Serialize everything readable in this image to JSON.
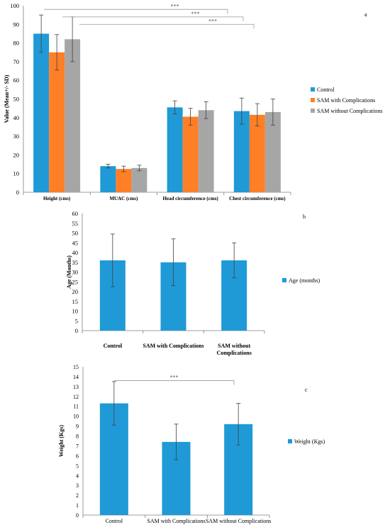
{
  "colors": {
    "control": "#1f9ad6",
    "sam_with": "#ff7f27",
    "sam_without": "#a6a6a6",
    "axis": "#7f7f7f",
    "text": "#000000",
    "sig_line": "#a6a6a6"
  },
  "chart_data": [
    {
      "panel_label": "a",
      "type": "bar",
      "ylabel": "Value (Mean+/- SD)",
      "xlabel": "",
      "ylim": [
        0,
        100
      ],
      "yticks": [
        0,
        10,
        20,
        30,
        40,
        50,
        60,
        70,
        80,
        90,
        100
      ],
      "categories": [
        "Height (cms)",
        "MUAC (cms)",
        "Head circumference (cms)",
        "Chest circumference (cms)"
      ],
      "series": [
        {
          "name": "Control",
          "color_key": "control",
          "values": [
            85,
            14,
            45.5,
            43.5
          ],
          "errors": [
            10,
            1,
            3.5,
            7
          ]
        },
        {
          "name": "SAM with Complications",
          "color_key": "sam_with",
          "values": [
            75,
            12.5,
            40.5,
            41.5
          ],
          "errors": [
            9.5,
            1.5,
            4.5,
            6
          ]
        },
        {
          "name": "SAM without Complications",
          "color_key": "sam_without",
          "values": [
            82,
            13,
            44,
            43
          ],
          "errors": [
            12,
            1.5,
            4.5,
            7
          ]
        }
      ],
      "legend_position": "right",
      "significance": [
        {
          "label": "***",
          "y": 98
        },
        {
          "label": "***",
          "y": 94
        },
        {
          "label": "***",
          "y": 90
        }
      ]
    },
    {
      "panel_label": "b",
      "type": "bar",
      "ylabel": "Age (Months)",
      "xlabel": "",
      "ylim": [
        0,
        60
      ],
      "yticks": [
        0,
        5,
        10,
        15,
        20,
        25,
        30,
        35,
        40,
        45,
        50,
        55,
        60
      ],
      "categories": [
        "Control",
        "SAM with Complications",
        "SAM without Complications"
      ],
      "series": [
        {
          "name": "Age (months)",
          "color_key": "control",
          "values": [
            36,
            35,
            36
          ],
          "errors": [
            13.5,
            12,
            9
          ]
        }
      ],
      "legend_position": "right",
      "significance": []
    },
    {
      "panel_label": "c",
      "type": "bar",
      "ylabel": "Weight (Kgs)",
      "xlabel": "",
      "ylim": [
        0,
        15
      ],
      "yticks": [
        0,
        1,
        2,
        3,
        4,
        5,
        6,
        7,
        8,
        9,
        10,
        11,
        12,
        13,
        14,
        15
      ],
      "categories": [
        "Control",
        "SAM with Complications",
        "SAM without Complications"
      ],
      "series": [
        {
          "name": "Weight (Kgs)",
          "color_key": "control",
          "values": [
            11.3,
            7.4,
            9.2
          ],
          "errors": [
            2.2,
            1.8,
            2.1
          ]
        }
      ],
      "legend_position": "right",
      "significance": [
        {
          "label": "***",
          "y": 13.6
        }
      ]
    }
  ]
}
